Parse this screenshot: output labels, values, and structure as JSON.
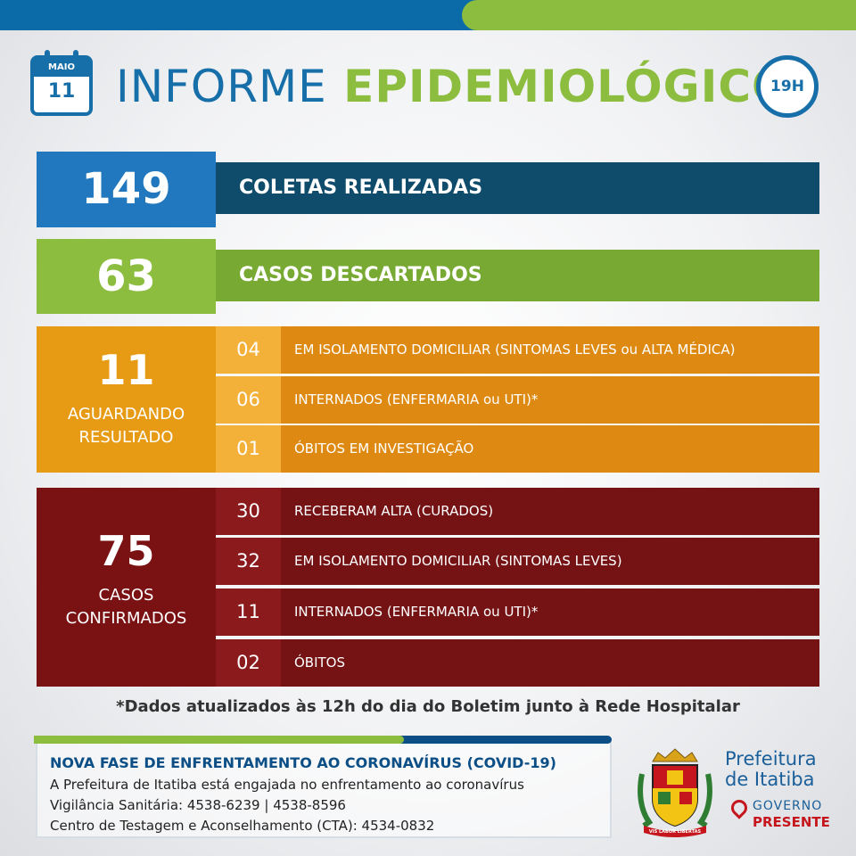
{
  "header": {
    "month": "MAIO",
    "day": "11",
    "title_part1": "INFORME",
    "title_part2": "EPIDEMIOLÓGICO",
    "time": "19H"
  },
  "coletas": {
    "value": "149",
    "label": "COLETAS REALIZADAS"
  },
  "descartados": {
    "value": "63",
    "label": "CASOS DESCARTADOS"
  },
  "aguardando": {
    "value": "11",
    "label_line1": "AGUARDANDO",
    "label_line2": "RESULTADO",
    "items": [
      {
        "num": "04",
        "label": "EM ISOLAMENTO DOMICILIAR (SINTOMAS LEVES ou ALTA MÉDICA)"
      },
      {
        "num": "06",
        "label": "INTERNADOS (ENFERMARIA ou UTI)*"
      },
      {
        "num": "01",
        "label": "ÓBITOS EM INVESTIGAÇÃO"
      }
    ]
  },
  "confirmados": {
    "value": "75",
    "label_line1": "CASOS",
    "label_line2": "CONFIRMADOS",
    "items": [
      {
        "num": "30",
        "label": "RECEBERAM ALTA (CURADOS)"
      },
      {
        "num": "32",
        "label": "EM ISOLAMENTO DOMICILIAR (SINTOMAS LEVES)"
      },
      {
        "num": "11",
        "label": "INTERNADOS (ENFERMARIA ou UTI)*"
      },
      {
        "num": "02",
        "label": "ÓBITOS"
      }
    ]
  },
  "footnote": "*Dados atualizados às 12h do dia do Boletim junto à Rede Hospitalar",
  "info": {
    "title": "NOVA FASE DE ENFRENTAMENTO AO CORONAVÍRUS (COVID-19)",
    "line1": "A Prefeitura de Itatiba está engajada no enfrentamento ao coronavírus",
    "line2": "Vigilância Sanitária: 4538-6239 | 4538-8596",
    "line3": "Centro de Testagem e Aconselhamento (CTA): 4534-0832"
  },
  "brand": {
    "line1": "Prefeitura",
    "line2": "de Itatiba",
    "gov1": "GOVERNO",
    "gov2": "PRESENTE",
    "crest_motto": "VIS LABOR LIBERTAS"
  },
  "colors": {
    "blue": "#2178be",
    "dark_blue": "#0f4b6b",
    "green": "#8cbd3f",
    "orange": "#e79b15",
    "dark_red": "#7a1113"
  }
}
